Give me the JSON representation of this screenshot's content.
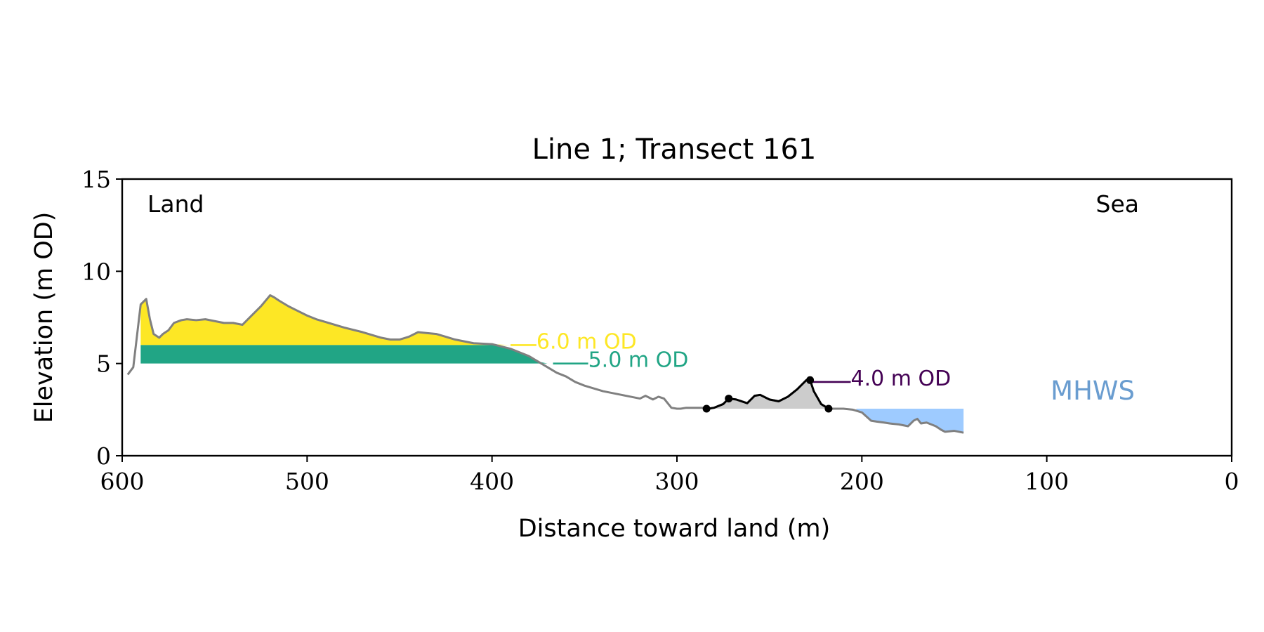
{
  "chart_data": {
    "type": "area",
    "title": "Line 1; Transect 161",
    "xlabel": "Distance toward land (m)",
    "ylabel": "Elevation (m OD)",
    "xlim": [
      600,
      0
    ],
    "ylim": [
      0,
      15
    ],
    "x_ticks": [
      600,
      500,
      400,
      300,
      200,
      100,
      0
    ],
    "y_ticks": [
      0,
      5,
      10,
      15
    ],
    "grid": false,
    "corner_labels": {
      "left": "Land",
      "right": "Sea"
    },
    "mhws_label": "MHWS",
    "profile": {
      "x": [
        597,
        594,
        592,
        590,
        587,
        585,
        583,
        580,
        578,
        575,
        572,
        568,
        565,
        560,
        555,
        550,
        545,
        540,
        535,
        530,
        525,
        520,
        518,
        515,
        510,
        505,
        500,
        495,
        490,
        480,
        470,
        460,
        455,
        450,
        445,
        440,
        435,
        430,
        425,
        420,
        415,
        410,
        400,
        390,
        385,
        380,
        375,
        370,
        365,
        360,
        355,
        350,
        340,
        330,
        320,
        317,
        313,
        310,
        307,
        303,
        300,
        298,
        295,
        290,
        285,
        283,
        280,
        275,
        272,
        268,
        262,
        258,
        255,
        250,
        245,
        240,
        235,
        230,
        228,
        226,
        222,
        218,
        215,
        210,
        205,
        200,
        195,
        192,
        188,
        185,
        180,
        175,
        172,
        170,
        168,
        165,
        160,
        157,
        155,
        150,
        145
      ],
      "y": [
        4.4,
        4.8,
        6.5,
        8.2,
        8.5,
        7.4,
        6.6,
        6.4,
        6.6,
        6.8,
        7.2,
        7.35,
        7.4,
        7.35,
        7.4,
        7.3,
        7.2,
        7.2,
        7.1,
        7.6,
        8.1,
        8.7,
        8.6,
        8.4,
        8.1,
        7.85,
        7.6,
        7.4,
        7.25,
        6.95,
        6.7,
        6.4,
        6.3,
        6.3,
        6.45,
        6.7,
        6.65,
        6.6,
        6.45,
        6.3,
        6.2,
        6.1,
        6.05,
        5.8,
        5.6,
        5.4,
        5.1,
        4.8,
        4.5,
        4.3,
        4.0,
        3.8,
        3.5,
        3.3,
        3.1,
        3.25,
        3.05,
        3.2,
        3.1,
        2.6,
        2.55,
        2.55,
        2.6,
        2.6,
        2.6,
        2.55,
        2.6,
        2.8,
        3.1,
        3.05,
        2.85,
        3.25,
        3.3,
        3.05,
        2.95,
        3.2,
        3.6,
        4.1,
        4.1,
        3.5,
        2.8,
        2.55,
        2.55,
        2.55,
        2.5,
        2.35,
        1.9,
        1.85,
        1.8,
        1.75,
        1.7,
        1.6,
        1.9,
        2.0,
        1.75,
        1.8,
        1.6,
        1.4,
        1.3,
        1.35,
        1.25
      ]
    },
    "bands": [
      {
        "label": "6.0 m OD",
        "level": 6.0,
        "color": "#fde725",
        "x_start": 590,
        "x_end": 390,
        "label_x": 376
      },
      {
        "label": "5.0 m OD",
        "level": 5.0,
        "color": "#21a585",
        "x_start": 590,
        "x_end": 367,
        "label_x": 348
      },
      {
        "label": "4.0 m OD",
        "level": 4.0,
        "color": "#440154",
        "x_start": 285,
        "x_end": 216,
        "label_x": 206
      }
    ],
    "mhws_fill": {
      "level": 2.55,
      "color": "#9ecbff",
      "x_start": 203,
      "x_end": 145
    },
    "dune_markers": [
      {
        "x": 284,
        "y": 2.55
      },
      {
        "x": 272,
        "y": 3.1
      },
      {
        "x": 228,
        "y": 4.1
      },
      {
        "x": 218,
        "y": 2.55
      }
    ],
    "colors": {
      "profile": "#808080",
      "dune_fill": "#cccccc",
      "dune_line": "#000000",
      "mhws_text": "#6a9dd0"
    }
  }
}
